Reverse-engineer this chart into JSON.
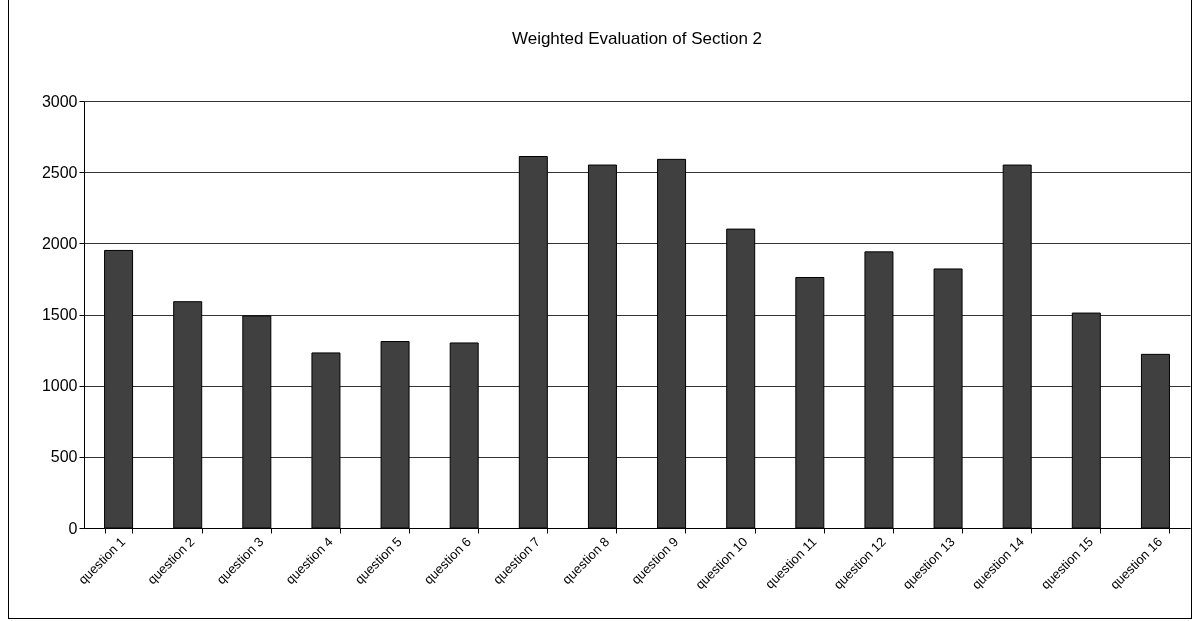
{
  "chart_data": {
    "type": "bar",
    "title": "Weighted Evaluation of Section 2",
    "categories": [
      "question 1",
      "question 2",
      "question 3",
      "question 4",
      "question 5",
      "question 6",
      "question 7",
      "question 8",
      "question 9",
      "question 10",
      "question 11",
      "question 12",
      "question 13",
      "question 14",
      "question 15",
      "question 16"
    ],
    "values": [
      1950,
      1590,
      1490,
      1230,
      1310,
      1300,
      2610,
      2550,
      2590,
      2100,
      1760,
      1940,
      1820,
      2550,
      1510,
      1220
    ],
    "color": "#404040",
    "ylim": [
      0,
      3000
    ],
    "yticks": [
      0,
      500,
      1000,
      1500,
      2000,
      2500,
      3000
    ],
    "grid": "y"
  }
}
